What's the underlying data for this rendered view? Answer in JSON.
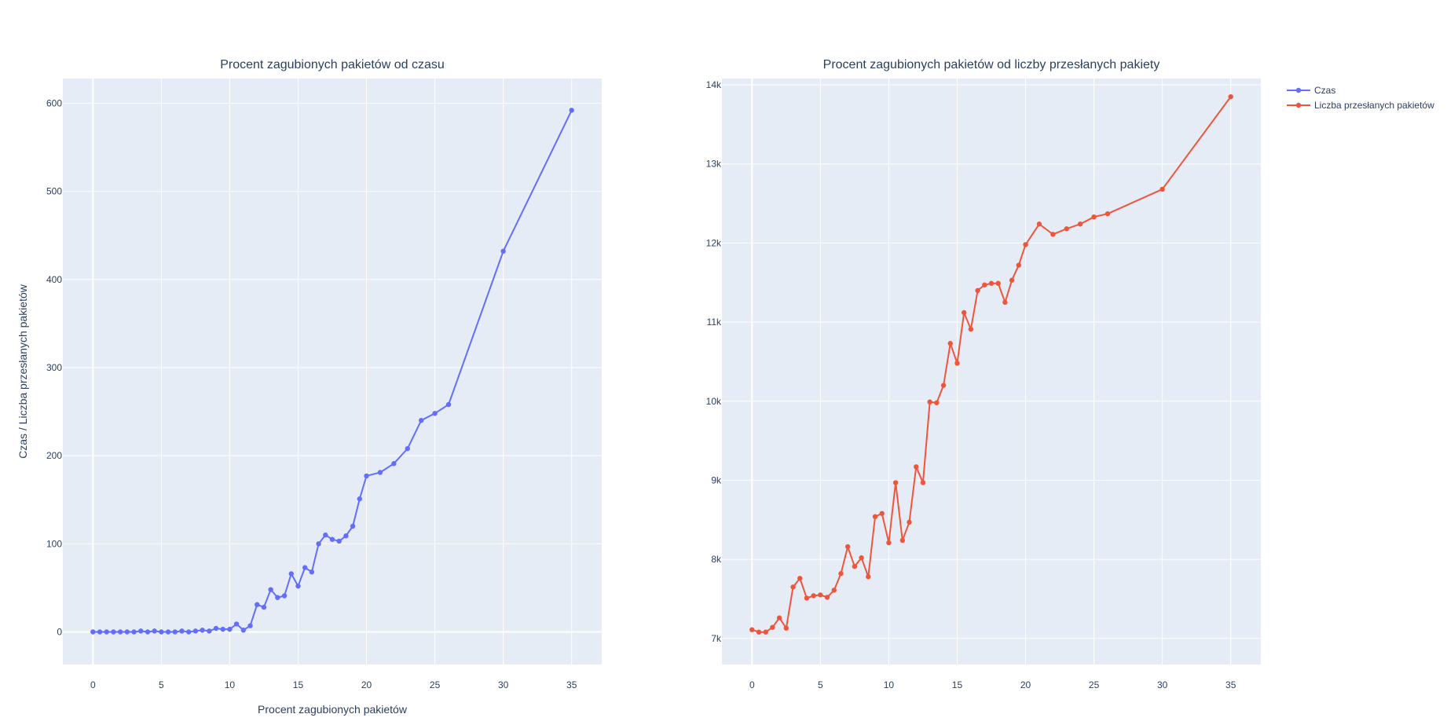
{
  "legend": {
    "placement": "top-right",
    "items": [
      {
        "label": "Czas",
        "color": "#636efa"
      },
      {
        "label": "Liczba przesłanych pakietów",
        "color": "#ef553b"
      }
    ]
  },
  "chart_data": [
    {
      "type": "line",
      "title": "Procent zagubionych pakietów od czasu",
      "xlabel": "Procent zagubionych pakietów",
      "ylabel": "Czas / Liczba przesłanych pakietów",
      "xlim": [
        -2.2,
        37.2
      ],
      "ylim": [
        -37,
        628
      ],
      "xticks": [
        0,
        5,
        10,
        15,
        20,
        25,
        30,
        35
      ],
      "yticks": [
        0,
        100,
        200,
        300,
        400,
        500,
        600
      ],
      "ytick_labels": [
        "0",
        "100",
        "200",
        "300",
        "400",
        "500",
        "600"
      ],
      "grid": true,
      "color": "#636efa",
      "series": [
        {
          "name": "Czas",
          "x": [
            0,
            0.5,
            1,
            1.5,
            2,
            2.5,
            3,
            3.5,
            4,
            4.5,
            5,
            5.5,
            6,
            6.5,
            7,
            7.5,
            8,
            8.5,
            9,
            9.5,
            10,
            10.5,
            11,
            11.5,
            12,
            12.5,
            13,
            13.5,
            14,
            14.5,
            15,
            15.5,
            16,
            16.5,
            17,
            17.5,
            18,
            18.5,
            19,
            19.5,
            20,
            21,
            22,
            23,
            24,
            25,
            26,
            30,
            35
          ],
          "y": [
            0,
            0,
            0,
            0,
            0,
            0,
            0,
            1,
            0,
            1,
            0,
            0,
            0,
            1,
            0,
            1,
            2,
            1,
            4,
            3,
            3,
            9,
            2,
            7,
            31,
            28,
            48,
            39,
            41,
            66,
            52,
            73,
            68,
            100,
            110,
            105,
            103,
            109,
            120,
            151,
            177,
            181,
            191,
            208,
            240,
            248,
            258,
            432,
            592
          ]
        }
      ]
    },
    {
      "type": "line",
      "title": "Procent zagubionych pakietów od liczby przesłanych pakiety",
      "xlabel": "",
      "ylabel": "",
      "xlim": [
        -2.2,
        37.2
      ],
      "ylim": [
        6670,
        14080
      ],
      "xticks": [
        0,
        5,
        10,
        15,
        20,
        25,
        30,
        35
      ],
      "yticks": [
        7000,
        8000,
        9000,
        10000,
        11000,
        12000,
        13000,
        14000
      ],
      "ytick_labels": [
        "7k",
        "8k",
        "9k",
        "10k",
        "11k",
        "12k",
        "13k",
        "14k"
      ],
      "grid": true,
      "color": "#ef553b",
      "series": [
        {
          "name": "Liczba przesłanych pakietów",
          "x": [
            0,
            0.5,
            1,
            1.5,
            2,
            2.5,
            3,
            3.5,
            4,
            4.5,
            5,
            5.5,
            6,
            6.5,
            7,
            7.5,
            8,
            8.5,
            9,
            9.5,
            10,
            10.5,
            11,
            11.5,
            12,
            12.5,
            13,
            13.5,
            14,
            14.5,
            15,
            15.5,
            16,
            16.5,
            17,
            17.5,
            18,
            18.5,
            19,
            19.5,
            20,
            21,
            22,
            23,
            24,
            25,
            26,
            30,
            35
          ],
          "y": [
            7110,
            7080,
            7080,
            7140,
            7260,
            7130,
            7650,
            7760,
            7510,
            7540,
            7550,
            7520,
            7610,
            7820,
            8160,
            7910,
            8020,
            7780,
            8540,
            8580,
            8210,
            8970,
            8240,
            8470,
            9170,
            8970,
            9990,
            9980,
            10200,
            10730,
            10480,
            11120,
            10910,
            11400,
            11470,
            11490,
            11490,
            11250,
            11530,
            11720,
            11980,
            12240,
            12110,
            12180,
            12240,
            12330,
            12370,
            12680,
            13850
          ]
        }
      ]
    }
  ]
}
